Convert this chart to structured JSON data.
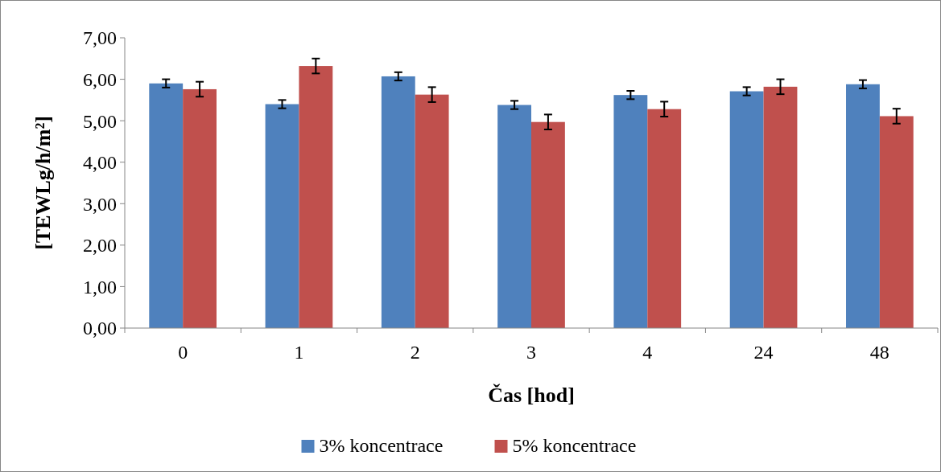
{
  "chart_data": {
    "type": "bar",
    "xlabel": "Čas [hod]",
    "ylabel": "[TEWLg/h/m²]",
    "categories": [
      "0",
      "1",
      "2",
      "3",
      "4",
      "24",
      "48"
    ],
    "series": [
      {
        "name": "3% koncentrace",
        "color": "#4f81bd",
        "values": [
          5.9,
          5.4,
          6.07,
          5.38,
          5.62,
          5.71,
          5.88
        ],
        "errors": [
          0.1,
          0.1,
          0.1,
          0.1,
          0.1,
          0.1,
          0.1
        ]
      },
      {
        "name": "5% koncentrace",
        "color": "#c0504d",
        "values": [
          5.76,
          6.32,
          5.63,
          4.97,
          5.28,
          5.82,
          5.11
        ],
        "errors": [
          0.18,
          0.18,
          0.18,
          0.18,
          0.18,
          0.18,
          0.18
        ]
      }
    ],
    "ylim": [
      0,
      7
    ],
    "yticks": [
      {
        "value": 0,
        "label": "0,00"
      },
      {
        "value": 1,
        "label": "1,00"
      },
      {
        "value": 2,
        "label": "2,00"
      },
      {
        "value": 3,
        "label": "3,00"
      },
      {
        "value": 4,
        "label": "4,00"
      },
      {
        "value": 5,
        "label": "5,00"
      },
      {
        "value": 6,
        "label": "6,00"
      },
      {
        "value": 7,
        "label": "7,00"
      }
    ],
    "legend": "bottom"
  }
}
